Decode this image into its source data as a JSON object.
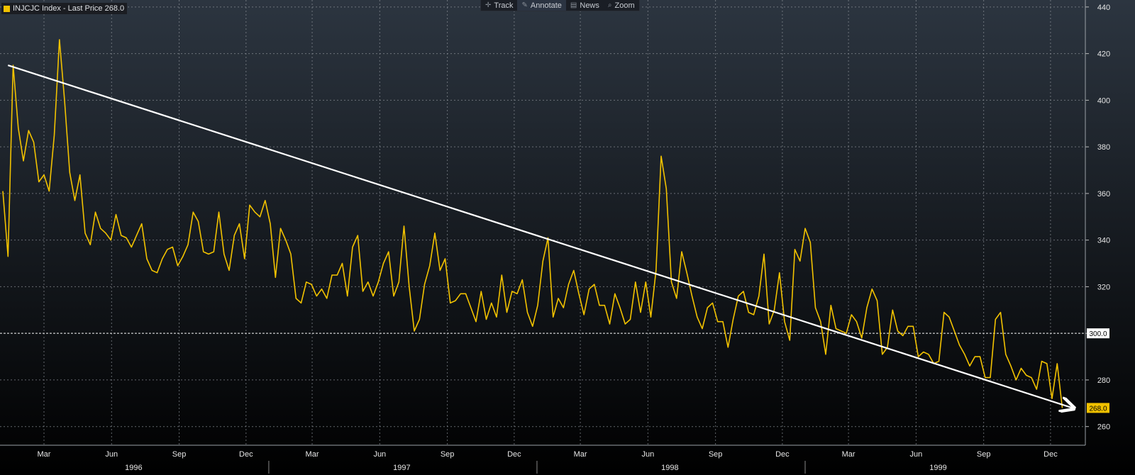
{
  "legend": {
    "text": "INJCJC Index - Last Price 268.0",
    "color": "#f2c200"
  },
  "toolbar": {
    "items": [
      {
        "label": "Track",
        "icon": "crosshair-icon"
      },
      {
        "label": "Annotate",
        "icon": "pencil-icon",
        "active": true
      },
      {
        "label": "News",
        "icon": "news-icon"
      },
      {
        "label": "Zoom",
        "icon": "magnifier-icon"
      }
    ]
  },
  "colors": {
    "background_top": "#2c3540",
    "background_bottom": "#000000",
    "series": "#f2c200",
    "trendline": "#ffffff",
    "grid": "#8a8f96"
  },
  "chart_data": {
    "type": "line",
    "series": [
      {
        "name": "INJCJC Index",
        "sampling": "weekly",
        "values": [
          361,
          333,
          415,
          388,
          374,
          387,
          382,
          365,
          368,
          361,
          385,
          426,
          400,
          369,
          357,
          368,
          343,
          338,
          352,
          345,
          343,
          340,
          351,
          342,
          341,
          337,
          342,
          347,
          332,
          327,
          326,
          332,
          336,
          337,
          329,
          333,
          338,
          352,
          348,
          335,
          334,
          335,
          352,
          334,
          327,
          342,
          347,
          332,
          355,
          352,
          350,
          357,
          347,
          324,
          345,
          340,
          334,
          315,
          313,
          322,
          321,
          316,
          319,
          315,
          325,
          325,
          330,
          316,
          337,
          342,
          318,
          322,
          316,
          322,
          330,
          335,
          316,
          322,
          346,
          320,
          301,
          306,
          321,
          329,
          343,
          327,
          332,
          313,
          314,
          317,
          317,
          311,
          305,
          318,
          306,
          313,
          307,
          325,
          309,
          318,
          317,
          323,
          309,
          303,
          312,
          331,
          341,
          307,
          315,
          311,
          321,
          327,
          317,
          308,
          319,
          321,
          312,
          312,
          304,
          317,
          311,
          304,
          306,
          322,
          309,
          322,
          307,
          327,
          376,
          362,
          322,
          315,
          335,
          326,
          316,
          307,
          302,
          311,
          313,
          305,
          305,
          294,
          306,
          316,
          318,
          309,
          308,
          316,
          334,
          304,
          310,
          326,
          305,
          297,
          336,
          331,
          345,
          339,
          311,
          305,
          291,
          312,
          302,
          301,
          300,
          308,
          305,
          298,
          311,
          319,
          314,
          291,
          294,
          310,
          301,
          299,
          303,
          303,
          290,
          292,
          291,
          287,
          288,
          309,
          307,
          301,
          295,
          291,
          286,
          290,
          290,
          281,
          281,
          306,
          309,
          291,
          286,
          280,
          285,
          282,
          281,
          276,
          288,
          287,
          272,
          287,
          268
        ]
      }
    ],
    "time_axis": {
      "start": "1996-01-05",
      "end": "1999-12-31",
      "month_labels": [
        "Mar",
        "Jun",
        "Sep",
        "Dec"
      ],
      "year_labels": [
        "1996",
        "1997",
        "1998",
        "1999"
      ]
    },
    "ylim": [
      252,
      443
    ],
    "yticks": [
      260,
      280,
      300,
      320,
      340,
      360,
      380,
      400,
      420,
      440
    ],
    "y_axis_side": "right",
    "last_price_label": "268.0",
    "marked_value_label": "300.0",
    "marked_value": 300,
    "trendline": {
      "from": [
        "1996-01-12",
        415
      ],
      "to": [
        "1999-12-31",
        268
      ],
      "arrow": true
    },
    "grid": true
  }
}
